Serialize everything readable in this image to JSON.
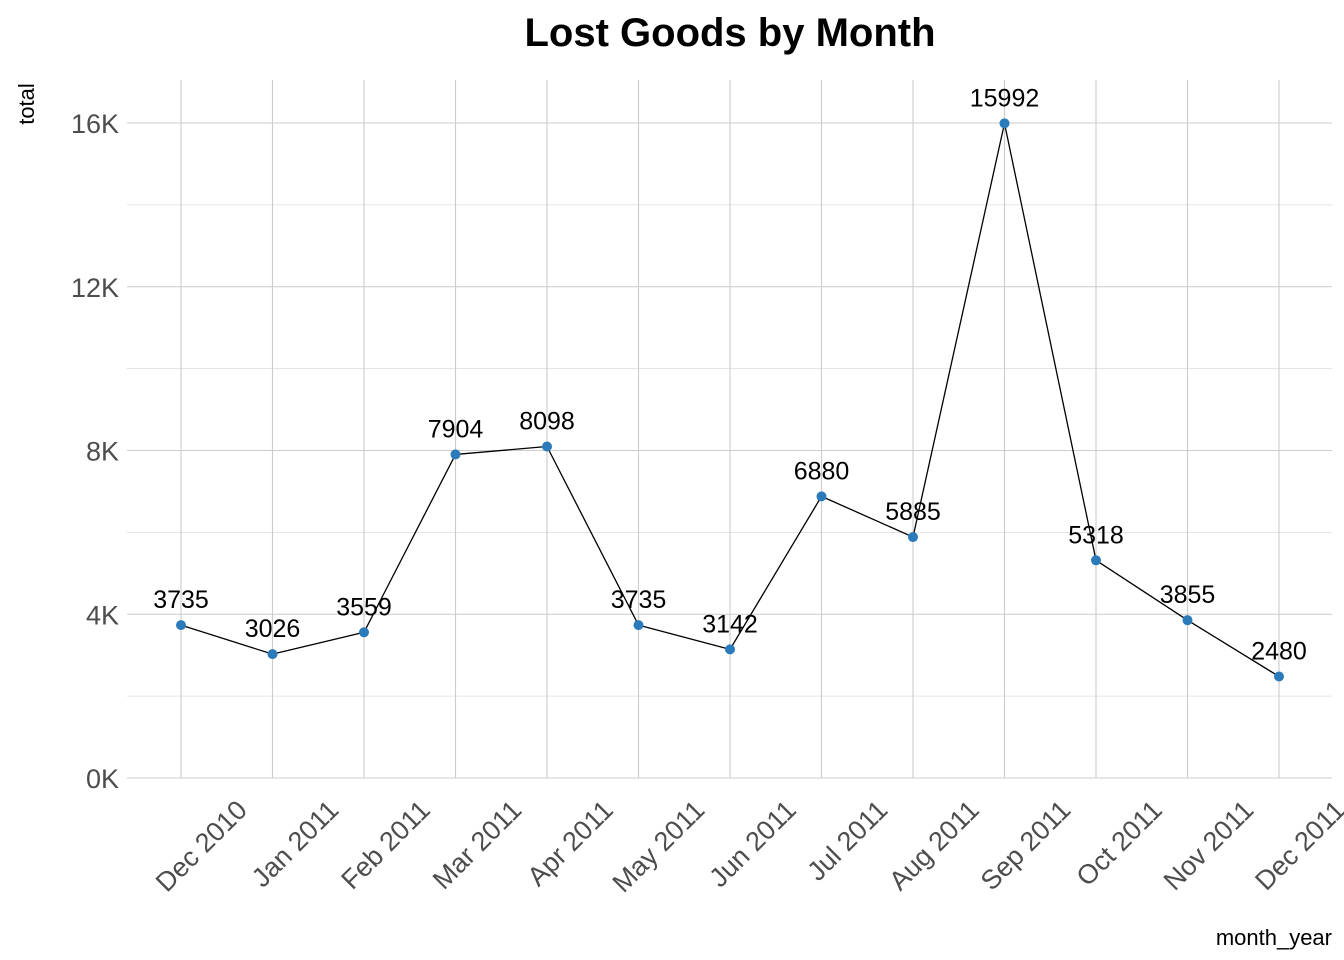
{
  "chart_data": {
    "type": "line",
    "title": "Lost Goods by Month",
    "xlabel": "month_year",
    "ylabel": "total",
    "categories": [
      "Dec 2010",
      "Jan 2011",
      "Feb 2011",
      "Mar 2011",
      "Apr 2011",
      "May 2011",
      "Jun 2011",
      "Jul 2011",
      "Aug 2011",
      "Sep 2011",
      "Oct 2011",
      "Nov 2011",
      "Dec 2011"
    ],
    "values": [
      3735,
      3026,
      3559,
      7904,
      8098,
      3735,
      3142,
      6880,
      5885,
      15992,
      5318,
      3855,
      2480
    ],
    "data_labels": [
      "3735",
      "3026",
      "3559",
      "7904",
      "8098",
      "3735",
      "3142",
      "6880",
      "5885",
      "15992",
      "5318",
      "3855",
      "2480"
    ],
    "ylim": [
      0,
      16000
    ],
    "yticks": [
      0,
      4000,
      8000,
      12000,
      16000
    ],
    "ytick_labels": [
      "0K",
      "4K",
      "8K",
      "12K",
      "16K"
    ],
    "grid": true,
    "legend": "none",
    "colors": {
      "point": "#2b7bba",
      "line": "#000000",
      "grid": "#cccccc",
      "tick_text": "#4d4d4d"
    }
  }
}
